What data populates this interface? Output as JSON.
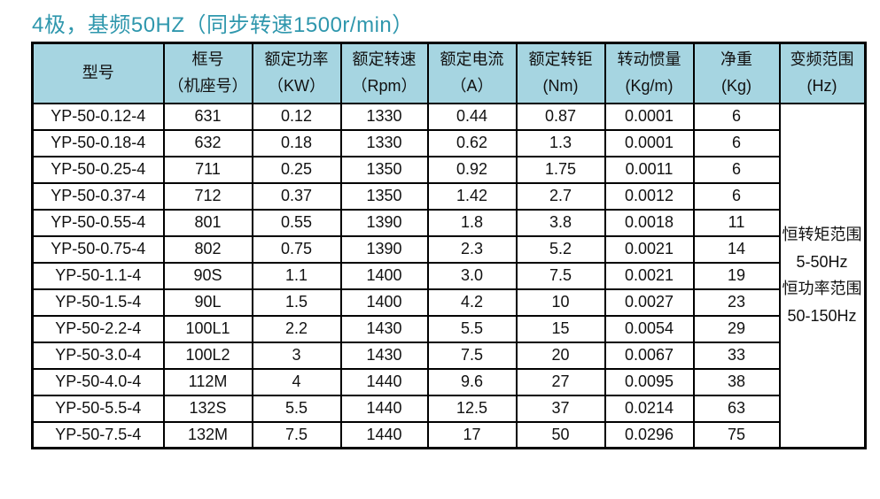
{
  "title": "4极，基频50HZ（同步转速1500r/min）",
  "colors": {
    "title_text": "#2f97ad",
    "header_bg": "#a6d5e1",
    "border": "#000000",
    "body_bg": "#ffffff"
  },
  "table": {
    "columns": [
      {
        "id": "model",
        "title": "型号",
        "unit": ""
      },
      {
        "id": "frame-number",
        "title": "框号",
        "unit": "（机座号）"
      },
      {
        "id": "rated-power",
        "title": "额定功率",
        "unit": "（KW）"
      },
      {
        "id": "rated-speed",
        "title": "额定转速",
        "unit": "（Rpm）"
      },
      {
        "id": "rated-current",
        "title": "额定电流",
        "unit": "（A）"
      },
      {
        "id": "rated-torque",
        "title": "额定转钜",
        "unit": "(Nm)"
      },
      {
        "id": "inertia",
        "title": "转动惯量",
        "unit": "(Kg/m)"
      },
      {
        "id": "net-weight",
        "title": "净重",
        "unit": "(Kg)"
      },
      {
        "id": "freq-range",
        "title": "变频范围",
        "unit": "(Hz)"
      }
    ],
    "rows": [
      [
        "YP-50-0.12-4",
        "631",
        "0.12",
        "1330",
        "0.44",
        "0.87",
        "0.0001",
        "6"
      ],
      [
        "YP-50-0.18-4",
        "632",
        "0.18",
        "1330",
        "0.62",
        "1.3",
        "0.0001",
        "6"
      ],
      [
        "YP-50-0.25-4",
        "711",
        "0.25",
        "1350",
        "0.92",
        "1.75",
        "0.0011",
        "6"
      ],
      [
        "YP-50-0.37-4",
        "712",
        "0.37",
        "1350",
        "1.42",
        "2.7",
        "0.0012",
        "6"
      ],
      [
        "YP-50-0.55-4",
        "801",
        "0.55",
        "1390",
        "1.8",
        "3.8",
        "0.0018",
        "11"
      ],
      [
        "YP-50-0.75-4",
        "802",
        "0.75",
        "1390",
        "2.3",
        "5.2",
        "0.0021",
        "14"
      ],
      [
        "YP-50-1.1-4",
        "90S",
        "1.1",
        "1400",
        "3.0",
        "7.5",
        "0.0021",
        "19"
      ],
      [
        "YP-50-1.5-4",
        "90L",
        "1.5",
        "1400",
        "4.2",
        "10",
        "0.0027",
        "23"
      ],
      [
        "YP-50-2.2-4",
        "100L1",
        "2.2",
        "1430",
        "5.5",
        "15",
        "0.0054",
        "29"
      ],
      [
        "YP-50-3.0-4",
        "100L2",
        "3",
        "1430",
        "7.5",
        "20",
        "0.0067",
        "33"
      ],
      [
        "YP-50-4.0-4",
        "112M",
        "4",
        "1440",
        "9.6",
        "27",
        "0.0095",
        "38"
      ],
      [
        "YP-50-5.5-4",
        "132S",
        "5.5",
        "1440",
        "12.5",
        "37",
        "0.0214",
        "63"
      ],
      [
        "YP-50-7.5-4",
        "132M",
        "7.5",
        "1440",
        "17",
        "50",
        "0.0296",
        "75"
      ]
    ],
    "freq_range_lines": [
      "恒转矩范围",
      "5-50Hz",
      "恒功率范围",
      "50-150Hz"
    ]
  }
}
